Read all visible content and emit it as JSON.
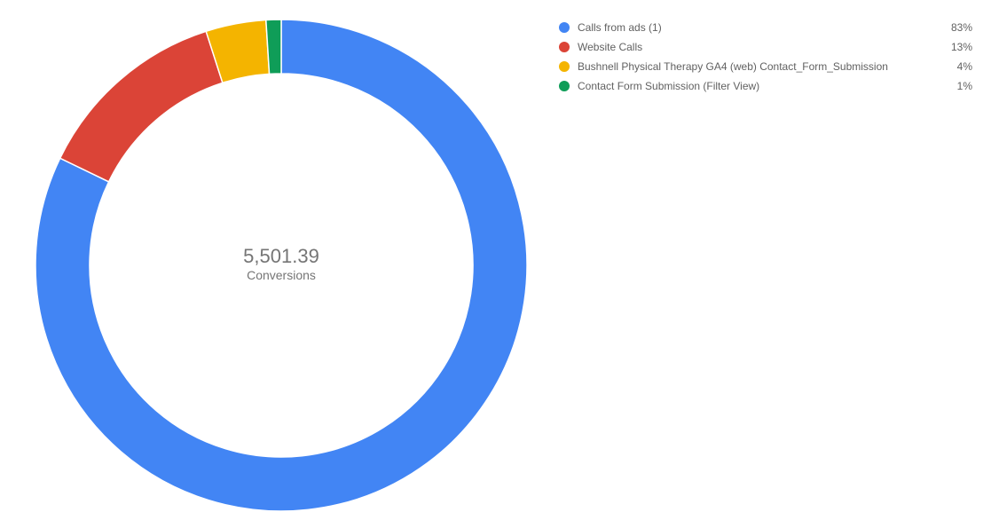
{
  "chart_data": {
    "type": "pie",
    "style": "donut",
    "center": {
      "value": "5,501.39",
      "label": "Conversions"
    },
    "legend_position": "right",
    "slices": [
      {
        "name": "Calls from ads (1)",
        "value": 83,
        "label": "83%",
        "color": "#4285F4"
      },
      {
        "name": "Website Calls",
        "value": 13,
        "label": "13%",
        "color": "#DB4437"
      },
      {
        "name": "Bushnell Physical Therapy GA4 (web) Contact_Form_Submission",
        "value": 4,
        "label": "4%",
        "color": "#F4B400"
      },
      {
        "name": "Contact Form Submission (Filter View)",
        "value": 1,
        "label": "1%",
        "color": "#0F9D58"
      }
    ]
  }
}
